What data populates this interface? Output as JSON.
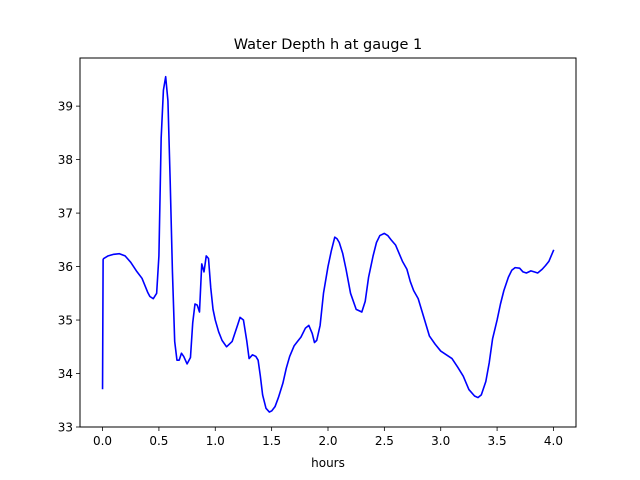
{
  "chart_data": {
    "type": "line",
    "title": "Water Depth h at gauge 1",
    "xlabel": "hours",
    "ylabel": "",
    "xlim": [
      -0.2,
      4.2
    ],
    "ylim": [
      33.0,
      39.9
    ],
    "xticks": [
      0.0,
      0.5,
      1.0,
      1.5,
      2.0,
      2.5,
      3.0,
      3.5,
      4.0
    ],
    "xtick_labels": [
      "0.0",
      "0.5",
      "1.0",
      "1.5",
      "2.0",
      "2.5",
      "3.0",
      "3.5",
      "4.0"
    ],
    "yticks": [
      33,
      34,
      35,
      36,
      37,
      38,
      39
    ],
    "ytick_labels": [
      "33",
      "34",
      "35",
      "36",
      "37",
      "38",
      "39"
    ],
    "grid": false,
    "series": [
      {
        "color": "#0000ff",
        "x": [
          0.0,
          0.005,
          0.01,
          0.05,
          0.1,
          0.15,
          0.2,
          0.25,
          0.3,
          0.35,
          0.4,
          0.42,
          0.45,
          0.48,
          0.5,
          0.52,
          0.54,
          0.56,
          0.58,
          0.6,
          0.62,
          0.64,
          0.66,
          0.68,
          0.7,
          0.72,
          0.75,
          0.78,
          0.8,
          0.82,
          0.84,
          0.86,
          0.88,
          0.9,
          0.92,
          0.94,
          0.96,
          0.98,
          1.0,
          1.03,
          1.06,
          1.1,
          1.15,
          1.2,
          1.22,
          1.25,
          1.28,
          1.3,
          1.33,
          1.36,
          1.38,
          1.4,
          1.42,
          1.45,
          1.48,
          1.5,
          1.53,
          1.56,
          1.6,
          1.63,
          1.66,
          1.7,
          1.73,
          1.76,
          1.8,
          1.83,
          1.86,
          1.88,
          1.9,
          1.93,
          1.96,
          2.0,
          2.03,
          2.06,
          2.08,
          2.1,
          2.13,
          2.16,
          2.2,
          2.25,
          2.3,
          2.33,
          2.36,
          2.38,
          2.4,
          2.43,
          2.46,
          2.5,
          2.53,
          2.56,
          2.6,
          2.63,
          2.66,
          2.7,
          2.73,
          2.76,
          2.8,
          2.85,
          2.9,
          2.95,
          3.0,
          3.05,
          3.1,
          3.15,
          3.2,
          3.25,
          3.3,
          3.33,
          3.36,
          3.4,
          3.43,
          3.46,
          3.5,
          3.53,
          3.56,
          3.6,
          3.63,
          3.66,
          3.7,
          3.73,
          3.76,
          3.8,
          3.83,
          3.86,
          3.9,
          3.93,
          3.96,
          4.0
        ],
        "y": [
          33.72,
          36.13,
          36.15,
          36.2,
          36.23,
          36.24,
          36.2,
          36.08,
          35.92,
          35.78,
          35.52,
          35.44,
          35.4,
          35.5,
          36.2,
          38.4,
          39.3,
          39.55,
          39.1,
          37.6,
          35.9,
          34.6,
          34.25,
          34.25,
          34.38,
          34.32,
          34.18,
          34.3,
          34.95,
          35.3,
          35.28,
          35.15,
          36.05,
          35.9,
          36.2,
          36.15,
          35.6,
          35.2,
          35.0,
          34.78,
          34.62,
          34.5,
          34.6,
          34.92,
          35.05,
          35.0,
          34.6,
          34.28,
          34.35,
          34.32,
          34.25,
          33.95,
          33.6,
          33.35,
          33.28,
          33.3,
          33.38,
          33.55,
          33.82,
          34.1,
          34.32,
          34.52,
          34.6,
          34.68,
          34.85,
          34.9,
          34.75,
          34.58,
          34.62,
          34.9,
          35.5,
          36.0,
          36.3,
          36.55,
          36.52,
          36.45,
          36.25,
          35.95,
          35.5,
          35.2,
          35.15,
          35.35,
          35.8,
          36.0,
          36.2,
          36.45,
          36.58,
          36.62,
          36.58,
          36.5,
          36.4,
          36.25,
          36.1,
          35.95,
          35.72,
          35.55,
          35.4,
          35.05,
          34.7,
          34.55,
          34.42,
          34.35,
          34.28,
          34.12,
          33.95,
          33.7,
          33.58,
          33.55,
          33.6,
          33.85,
          34.2,
          34.65,
          35.0,
          35.3,
          35.55,
          35.8,
          35.93,
          35.98,
          35.97,
          35.9,
          35.88,
          35.92,
          35.9,
          35.88,
          35.95,
          36.02,
          36.1,
          36.3
        ]
      }
    ]
  }
}
